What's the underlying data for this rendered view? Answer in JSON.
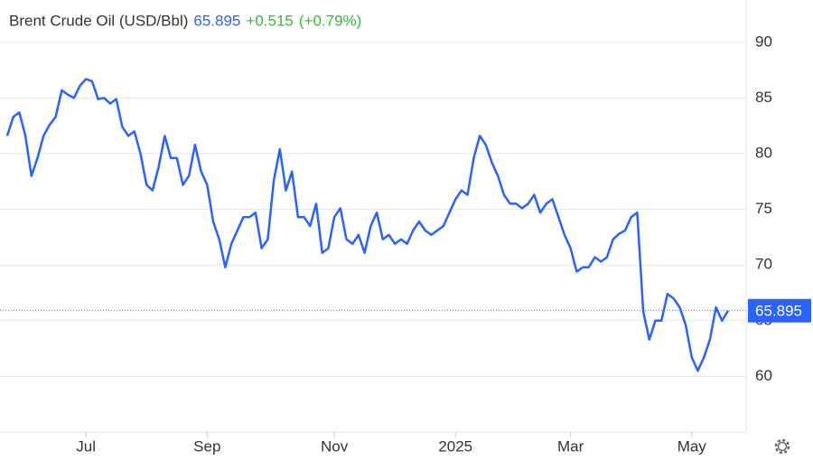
{
  "chart_data": {
    "type": "line",
    "title": "Brent Crude Oil (USD/Bbl)",
    "price": 65.895,
    "change": "+0.515",
    "change_pct": "(+0.79%)",
    "categories": [
      null,
      null,
      null,
      null,
      null,
      null,
      null,
      null,
      null,
      null,
      null,
      null,
      null,
      "Jul",
      null,
      null,
      null,
      null,
      null,
      null,
      null,
      null,
      null,
      null,
      null,
      null,
      null,
      null,
      null,
      null,
      null,
      null,
      null,
      "Sep",
      null,
      null,
      null,
      null,
      null,
      null,
      null,
      null,
      null,
      null,
      null,
      null,
      null,
      null,
      null,
      null,
      null,
      null,
      null,
      null,
      "Nov",
      null,
      null,
      null,
      null,
      null,
      null,
      null,
      null,
      null,
      null,
      null,
      null,
      null,
      null,
      null,
      null,
      null,
      null,
      null,
      "2025",
      null,
      null,
      null,
      null,
      null,
      null,
      null,
      null,
      null,
      null,
      null,
      null,
      null,
      null,
      null,
      null,
      null,
      null,
      "Mar",
      null,
      null,
      null,
      null,
      null,
      null,
      null,
      null,
      null,
      null,
      null,
      null,
      null,
      null,
      null,
      null,
      null,
      null,
      null,
      "May",
      null,
      null,
      null,
      null,
      null,
      null
    ],
    "series": [
      {
        "name": "Brent Crude Oil",
        "color": "#2962ff",
        "values": [
          81.6,
          83.3,
          83.7,
          81.6,
          78,
          79.6,
          81.6,
          82.6,
          83.3,
          85.7,
          85.3,
          85,
          86.1,
          86.7,
          86.5,
          84.9,
          85,
          84.5,
          84.9,
          82.4,
          81.6,
          82,
          80,
          77.2,
          76.7,
          78.8,
          81.6,
          79.6,
          79.6,
          77.2,
          78,
          80.8,
          78.4,
          77.2,
          73.9,
          72.3,
          69.8,
          71.9,
          73.1,
          74.3,
          74.3,
          74.7,
          71.5,
          72.3,
          77.6,
          80.4,
          76.7,
          78.4,
          74.3,
          74.3,
          73.5,
          75.5,
          71.1,
          71.5,
          74.3,
          75.1,
          72.3,
          71.9,
          72.7,
          71.1,
          73.5,
          74.7,
          72.3,
          72.7,
          71.9,
          72.3,
          71.9,
          73.1,
          73.9,
          73.1,
          72.7,
          73.1,
          73.5,
          74.7,
          75.9,
          76.7,
          76.3,
          79.6,
          81.6,
          80.8,
          79.2,
          78,
          76.3,
          75.5,
          75.5,
          75.1,
          75.5,
          76.3,
          74.7,
          75.5,
          75.9,
          74.3,
          72.7,
          71.5,
          69.4,
          69.8,
          69.8,
          70.7,
          70.3,
          70.7,
          72.3,
          72.8,
          73.1,
          74.3,
          74.7,
          65.8,
          63.3,
          65,
          65,
          67.4,
          67,
          66.2,
          64.6,
          61.7,
          60.5,
          61.7,
          63.3,
          66.2,
          65,
          65.895
        ]
      }
    ],
    "ylim": [
      55,
      93.8
    ],
    "yticks": [
      60,
      65,
      70,
      75,
      80,
      85,
      90
    ],
    "grid": true
  }
}
